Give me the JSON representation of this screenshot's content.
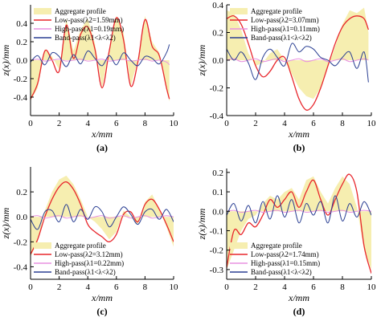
{
  "figure": {
    "background": "#ffffff"
  },
  "colors": {
    "profile_fill": "#f6eeb0",
    "low_pass": "#e8262c",
    "high_pass": "#e890e0",
    "band_pass": "#2a3f93",
    "axis": "#000000"
  },
  "chart_data": [
    {
      "panel_label": "(a)",
      "type": "line",
      "xlabel": "x/mm",
      "ylabel": "z(x)/mm",
      "xlim": [
        0,
        10
      ],
      "ylim": [
        -0.6,
        0.6
      ],
      "xticks": [
        0,
        2,
        4,
        6,
        8,
        10
      ],
      "yticks": [
        -0.4,
        -0.2,
        0.0,
        0.2,
        0.4
      ],
      "tick_labels_y": [
        "-0.4",
        "-0.2",
        "0.0",
        "0.2",
        "0.4"
      ],
      "legend": {
        "placement": "top-left",
        "entries": [
          "Aggregate profile",
          "Low-pass(λ2=1.59mm)",
          "High-pass(λ1=0.19mm)",
          "Band-pass(λ1<λ<λ2)"
        ]
      },
      "series": [
        {
          "name": "Aggregate profile",
          "style": "area",
          "x": [
            0,
            0.5,
            1,
            1.5,
            2,
            2.5,
            3,
            3.5,
            4,
            4.5,
            5,
            5.5,
            6,
            6.5,
            7,
            7.5,
            8,
            8.5,
            9,
            9.5,
            9.7
          ],
          "y": [
            -0.44,
            -0.3,
            0.12,
            0.04,
            -0.1,
            0.45,
            0.1,
            0.33,
            0.45,
            0.18,
            -0.3,
            0.12,
            0.48,
            0.3,
            -0.28,
            0.0,
            0.48,
            0.2,
            0.08,
            -0.32,
            -0.45
          ]
        },
        {
          "name": "Low-pass(λ2=1.59mm)",
          "style": "line",
          "x": [
            0,
            0.5,
            1,
            1.5,
            2,
            2.5,
            3,
            3.5,
            4,
            4.5,
            5,
            5.5,
            6,
            6.5,
            7,
            7.5,
            8,
            8.5,
            9,
            9.5,
            9.7
          ],
          "y": [
            -0.42,
            -0.25,
            0.1,
            0.0,
            -0.12,
            0.38,
            0.02,
            0.28,
            0.36,
            0.12,
            -0.3,
            0.1,
            0.46,
            0.22,
            -0.28,
            -0.02,
            0.44,
            0.15,
            0.05,
            -0.3,
            -0.42
          ]
        },
        {
          "name": "High-pass(λ1=0.19mm)",
          "style": "line",
          "x": [
            0,
            0.5,
            1,
            1.5,
            2,
            2.5,
            3,
            3.5,
            4,
            4.5,
            5,
            5.5,
            6,
            6.5,
            7,
            7.5,
            8,
            8.5,
            9,
            9.5,
            9.7
          ],
          "y": [
            0.0,
            0.01,
            -0.01,
            0.0,
            0.01,
            -0.01,
            0.0,
            0.01,
            -0.01,
            0.0,
            0.01,
            -0.01,
            0.0,
            0.01,
            -0.01,
            0.0,
            0.01,
            -0.01,
            0.0,
            -0.02,
            -0.05
          ]
        },
        {
          "name": "Band-pass(λ1<λ<λ2)",
          "style": "line",
          "x": [
            0,
            0.5,
            1,
            1.5,
            2,
            2.5,
            3,
            3.5,
            4,
            4.5,
            5,
            5.5,
            6,
            6.5,
            7,
            7.5,
            8,
            8.5,
            9,
            9.5,
            9.7
          ],
          "y": [
            -0.02,
            0.05,
            -0.05,
            0.08,
            0.04,
            -0.07,
            0.06,
            -0.04,
            0.1,
            0.02,
            -0.06,
            0.05,
            -0.05,
            0.08,
            0.0,
            -0.06,
            0.04,
            0.02,
            -0.04,
            0.08,
            0.17
          ]
        }
      ]
    },
    {
      "panel_label": "(b)",
      "type": "line",
      "xlabel": "x/mm",
      "ylabel": "z(x)/mm",
      "xlim": [
        0,
        10
      ],
      "ylim": [
        -0.4,
        0.4
      ],
      "xticks": [
        0,
        2,
        4,
        6,
        8,
        10
      ],
      "yticks": [
        -0.4,
        -0.2,
        0.0,
        0.2,
        0.4
      ],
      "tick_labels_y": [
        "-0.4",
        "-0.2",
        "0.0",
        "0.2",
        "0.4"
      ],
      "legend": {
        "placement": "top-left",
        "entries": [
          "Aggregate profile",
          "Low-pass(λ2=3.07mm)",
          "High-pass(λ1=0.11mm)",
          "Band-pass(λ1<λ<λ2)"
        ]
      },
      "series": [
        {
          "name": "Aggregate profile",
          "style": "area",
          "x": [
            0,
            0.5,
            1,
            1.5,
            2,
            2.5,
            3,
            3.5,
            4,
            4.5,
            5,
            5.5,
            6,
            6.5,
            7,
            7.5,
            8,
            8.5,
            9,
            9.5,
            9.8
          ],
          "y": [
            0.36,
            0.34,
            0.22,
            0.05,
            -0.04,
            -0.02,
            0.05,
            0.08,
            0.0,
            -0.1,
            -0.2,
            -0.26,
            -0.28,
            -0.2,
            -0.05,
            0.1,
            0.26,
            0.36,
            0.34,
            0.38,
            0.2
          ]
        },
        {
          "name": "Low-pass(λ2=3.07mm)",
          "style": "line",
          "x": [
            0,
            0.5,
            1,
            1.5,
            2,
            2.5,
            3,
            3.5,
            4,
            4.5,
            5,
            5.5,
            6,
            6.5,
            7,
            7.5,
            8,
            8.5,
            9,
            9.5,
            9.8
          ],
          "y": [
            0.3,
            0.32,
            0.26,
            0.12,
            -0.04,
            -0.12,
            -0.08,
            0.0,
            0.02,
            -0.12,
            -0.28,
            -0.36,
            -0.32,
            -0.2,
            -0.04,
            0.12,
            0.24,
            0.3,
            0.32,
            0.3,
            0.22
          ]
        },
        {
          "name": "High-pass(λ1=0.11mm)",
          "style": "line",
          "x": [
            0,
            0.5,
            1,
            1.5,
            2,
            2.5,
            3,
            3.5,
            4,
            4.5,
            5,
            5.5,
            6,
            6.5,
            7,
            7.5,
            8,
            8.5,
            9,
            9.5,
            9.8
          ],
          "y": [
            0.0,
            0.01,
            -0.01,
            0.0,
            0.01,
            -0.01,
            0.0,
            0.01,
            -0.01,
            0.0,
            0.01,
            -0.01,
            0.0,
            0.01,
            -0.01,
            0.0,
            0.01,
            -0.01,
            0.0,
            0.01,
            0.0
          ]
        },
        {
          "name": "Band-pass(λ1<λ<λ2)",
          "style": "line",
          "x": [
            0,
            0.5,
            1,
            1.5,
            2,
            2.5,
            3,
            3.5,
            4,
            4.5,
            5,
            5.5,
            6,
            6.5,
            7,
            7.5,
            8,
            8.5,
            9,
            9.5,
            9.8
          ],
          "y": [
            0.08,
            0.0,
            0.06,
            -0.02,
            -0.14,
            0.02,
            0.08,
            0.02,
            -0.04,
            0.12,
            0.06,
            0.1,
            0.08,
            0.02,
            0.0,
            -0.04,
            0.02,
            0.06,
            -0.06,
            0.06,
            -0.16
          ]
        }
      ]
    },
    {
      "panel_label": "(c)",
      "type": "line",
      "xlabel": "x/mm",
      "ylabel": "z(x)/mm",
      "xlim": [
        0,
        10
      ],
      "ylim": [
        -0.5,
        0.4
      ],
      "xticks": [
        0,
        2,
        4,
        6,
        8,
        10
      ],
      "yticks": [
        -0.4,
        -0.2,
        0.0,
        0.2
      ],
      "tick_labels_y": [
        "-0.4",
        "-0.2",
        "0.0",
        "0.2"
      ],
      "legend": {
        "placement": "bottom-left",
        "entries": [
          "Aggregate profile",
          "Low-pass(λ2=3.12mm)",
          "High-pass(λ1=0.22mm)",
          "Band-pass(λ1<λ<λ2)"
        ]
      },
      "series": [
        {
          "name": "Aggregate profile",
          "style": "area",
          "x": [
            0,
            0.5,
            1,
            1.5,
            2,
            2.5,
            3,
            3.5,
            4,
            4.5,
            5,
            5.5,
            6,
            6.5,
            7,
            7.5,
            8,
            8.5,
            9,
            9.5,
            10
          ],
          "y": [
            -0.32,
            -0.2,
            0.05,
            0.2,
            0.3,
            0.33,
            0.26,
            0.14,
            0.0,
            -0.04,
            -0.1,
            -0.18,
            -0.12,
            0.05,
            0.0,
            -0.06,
            0.12,
            0.18,
            0.06,
            -0.08,
            -0.24
          ]
        },
        {
          "name": "Low-pass(λ2=3.12mm)",
          "style": "line",
          "x": [
            0,
            0.5,
            1,
            1.5,
            2,
            2.5,
            3,
            3.5,
            4,
            4.5,
            5,
            5.5,
            6,
            6.5,
            7,
            7.5,
            8,
            8.5,
            9,
            9.5,
            10
          ],
          "y": [
            -0.3,
            -0.18,
            0.0,
            0.14,
            0.24,
            0.28,
            0.22,
            0.1,
            -0.06,
            -0.12,
            -0.16,
            -0.2,
            -0.14,
            0.02,
            0.04,
            -0.04,
            0.1,
            0.14,
            0.06,
            -0.06,
            -0.2
          ]
        },
        {
          "name": "High-pass(λ1=0.22mm)",
          "style": "line",
          "x": [
            0,
            0.5,
            1,
            1.5,
            2,
            2.5,
            3,
            3.5,
            4,
            4.5,
            5,
            5.5,
            6,
            6.5,
            7,
            7.5,
            8,
            8.5,
            9,
            9.5,
            10
          ],
          "y": [
            0.0,
            0.01,
            -0.01,
            0.0,
            0.01,
            -0.01,
            0.0,
            0.01,
            -0.01,
            0.0,
            0.01,
            -0.01,
            0.0,
            0.01,
            -0.01,
            0.0,
            0.01,
            -0.01,
            0.0,
            0.01,
            0.0
          ]
        },
        {
          "name": "Band-pass(λ1<λ<λ2)",
          "style": "line",
          "x": [
            0,
            0.5,
            1,
            1.5,
            2,
            2.5,
            3,
            3.5,
            4,
            4.5,
            5,
            5.5,
            6,
            6.5,
            7,
            7.5,
            8,
            8.5,
            9,
            9.5,
            10
          ],
          "y": [
            -0.02,
            -0.1,
            0.04,
            0.05,
            -0.04,
            0.1,
            -0.04,
            0.06,
            -0.02,
            0.08,
            0.04,
            -0.08,
            0.0,
            0.08,
            0.02,
            -0.06,
            0.04,
            0.06,
            -0.02,
            0.06,
            -0.04
          ]
        }
      ]
    },
    {
      "panel_label": "(d)",
      "type": "line",
      "xlabel": "x/mm",
      "ylabel": "z(x)/mm",
      "xlim": [
        0,
        10
      ],
      "ylim": [
        -0.35,
        0.22
      ],
      "xticks": [
        0,
        2,
        4,
        6,
        8,
        10
      ],
      "yticks": [
        -0.3,
        -0.2,
        -0.1,
        0.0,
        0.1,
        0.2
      ],
      "tick_labels_y": [
        "-0.3",
        "-0.2",
        "-0.1",
        "0.0",
        "0.1",
        "0.2"
      ],
      "legend": {
        "placement": "bottom-left",
        "entries": [
          "Aggregate profile",
          "Low-pass(λ2=1.74mm)",
          "High-pass(λ1=0.15mm)",
          "Band-pass(λ1<λ<λ2)"
        ]
      },
      "series": [
        {
          "name": "Aggregate profile",
          "style": "area",
          "x": [
            0,
            0.5,
            1,
            1.5,
            2,
            2.5,
            3,
            3.5,
            4,
            4.5,
            5,
            5.5,
            6,
            6.5,
            7,
            7.5,
            8,
            8.5,
            9,
            9.5,
            10
          ],
          "y": [
            -0.3,
            -0.2,
            -0.1,
            -0.04,
            -0.02,
            0.04,
            0.08,
            0.06,
            0.1,
            0.12,
            0.06,
            0.16,
            0.18,
            0.1,
            0.04,
            0.12,
            0.18,
            0.14,
            0.02,
            -0.2,
            -0.3
          ]
        },
        {
          "name": "Low-pass(λ2=1.74mm)",
          "style": "line",
          "x": [
            0,
            0.5,
            1,
            1.5,
            2,
            2.5,
            3,
            3.5,
            4,
            4.5,
            5,
            5.5,
            6,
            6.5,
            7,
            7.5,
            8,
            8.5,
            9,
            9.5,
            10
          ],
          "y": [
            -0.29,
            -0.1,
            -0.12,
            -0.06,
            -0.08,
            -0.02,
            0.06,
            0.02,
            0.06,
            0.1,
            0.02,
            0.1,
            0.16,
            0.06,
            -0.02,
            0.06,
            0.14,
            0.19,
            0.1,
            -0.18,
            -0.32
          ]
        },
        {
          "name": "High-pass(λ1=0.15mm)",
          "style": "line",
          "x": [
            0,
            0.5,
            1,
            1.5,
            2,
            2.5,
            3,
            3.5,
            4,
            4.5,
            5,
            5.5,
            6,
            6.5,
            7,
            7.5,
            8,
            8.5,
            9,
            9.5,
            10
          ],
          "y": [
            0.0,
            0.005,
            -0.005,
            0.0,
            0.005,
            -0.005,
            0.0,
            0.005,
            -0.005,
            0.0,
            0.005,
            -0.005,
            0.0,
            0.005,
            -0.005,
            0.0,
            0.005,
            -0.005,
            0.0,
            0.005,
            0.0
          ]
        },
        {
          "name": "Band-pass(λ1<λ<λ2)",
          "style": "line",
          "x": [
            0,
            0.5,
            1,
            1.5,
            2,
            2.5,
            3,
            3.5,
            4,
            4.5,
            5,
            5.5,
            6,
            6.5,
            7,
            7.5,
            8,
            8.5,
            9,
            9.5,
            10
          ],
          "y": [
            -0.02,
            0.04,
            -0.05,
            0.03,
            -0.06,
            0.05,
            -0.04,
            0.08,
            -0.03,
            0.06,
            -0.06,
            0.04,
            -0.02,
            0.05,
            -0.06,
            0.08,
            -0.05,
            0.04,
            -0.03,
            0.05,
            -0.02
          ]
        }
      ]
    }
  ]
}
